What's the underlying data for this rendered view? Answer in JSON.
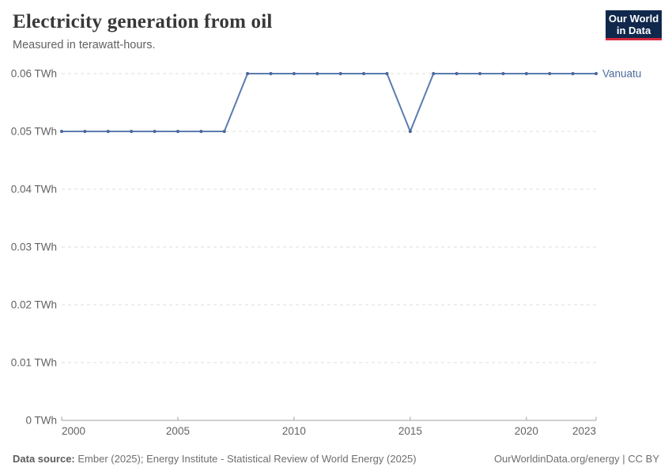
{
  "header": {
    "title": "Electricity generation from oil",
    "subtitle": "Measured in terawatt-hours.",
    "logo": {
      "line1": "Our World",
      "line2": "in Data"
    }
  },
  "chart_data": {
    "type": "line",
    "title": "Electricity generation from oil",
    "unit": "TWh",
    "xlim": [
      2000,
      2023
    ],
    "ylim": [
      0,
      0.06
    ],
    "grid": "horizontal-dashed",
    "legend_position": "end-of-line-label",
    "x": [
      2000,
      2001,
      2002,
      2003,
      2004,
      2005,
      2006,
      2007,
      2008,
      2009,
      2010,
      2011,
      2012,
      2013,
      2014,
      2015,
      2016,
      2017,
      2018,
      2019,
      2020,
      2021,
      2022,
      2023
    ],
    "series": [
      {
        "name": "Vanuatu",
        "color": "#4c6a9c",
        "values": [
          0.05,
          0.05,
          0.05,
          0.05,
          0.05,
          0.05,
          0.05,
          0.05,
          0.06,
          0.06,
          0.06,
          0.06,
          0.06,
          0.06,
          0.06,
          0.05,
          0.06,
          0.06,
          0.06,
          0.06,
          0.06,
          0.06,
          0.06,
          0.06
        ]
      }
    ],
    "x_ticks": [
      {
        "value": 2000,
        "label": "2000"
      },
      {
        "value": 2005,
        "label": "2005"
      },
      {
        "value": 2010,
        "label": "2010"
      },
      {
        "value": 2015,
        "label": "2015"
      },
      {
        "value": 2020,
        "label": "2020"
      },
      {
        "value": 2023,
        "label": "2023"
      }
    ],
    "y_ticks": [
      {
        "value": 0,
        "label": "0 TWh"
      },
      {
        "value": 0.01,
        "label": "0.01 TWh"
      },
      {
        "value": 0.02,
        "label": "0.02 TWh"
      },
      {
        "value": 0.03,
        "label": "0.03 TWh"
      },
      {
        "value": 0.04,
        "label": "0.04 TWh"
      },
      {
        "value": 0.05,
        "label": "0.05 TWh"
      },
      {
        "value": 0.06,
        "label": "0.06 TWh"
      }
    ]
  },
  "colors": {
    "line": "#5b7bae",
    "marker": "#4c6a9c",
    "entity_label": "#4c6a9c",
    "gridline": "#dcdcdc",
    "axis": "#a1a1a1",
    "tick_text": "#636363",
    "logo_navy": "#10284c",
    "logo_red": "#d5293d"
  },
  "footer": {
    "datasource_label": "Data source:",
    "datasource": "Ember (2025); Energy Institute - Statistical Review of World Energy (2025)",
    "credit": "OurWorldinData.org/energy | CC BY"
  }
}
